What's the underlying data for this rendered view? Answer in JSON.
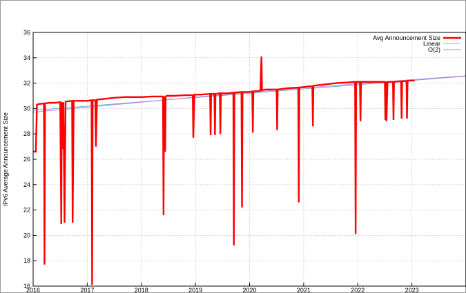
{
  "chart_data": {
    "type": "line",
    "title": "",
    "xlabel": "",
    "ylabel": "IPv6 Average Announcement Size",
    "xlim": [
      2016.0,
      2024.0
    ],
    "ylim": [
      16,
      36
    ],
    "x_ticks": [
      "2016",
      "2017",
      "2018",
      "2019",
      "2020",
      "2021",
      "2022",
      "2023"
    ],
    "y_ticks": [
      16,
      18,
      20,
      22,
      24,
      26,
      28,
      30,
      32,
      34,
      36
    ],
    "grid": true,
    "legend_position": "top-right",
    "series": [
      {
        "name": "Avg Announcement Size",
        "color": "#ff0000",
        "style": "line",
        "x": [
          2016.0,
          2016.05,
          2016.07,
          2016.1,
          2016.2,
          2016.21,
          2016.22,
          2016.3,
          2016.4,
          2016.5,
          2016.52,
          2016.53,
          2016.55,
          2016.56,
          2016.58,
          2016.6,
          2016.72,
          2016.73,
          2016.75,
          2016.8,
          2016.9,
          2017.0,
          2017.08,
          2017.09,
          2017.1,
          2017.15,
          2017.16,
          2017.18,
          2017.3,
          2017.5,
          2017.7,
          2017.9,
          2018.0,
          2018.2,
          2018.4,
          2018.41,
          2018.42,
          2018.44,
          2018.45,
          2018.47,
          2018.6,
          2018.8,
          2018.95,
          2018.96,
          2018.98,
          2019.1,
          2019.27,
          2019.28,
          2019.29,
          2019.35,
          2019.36,
          2019.37,
          2019.45,
          2019.46,
          2019.47,
          2019.6,
          2019.7,
          2019.71,
          2019.72,
          2019.85,
          2019.86,
          2019.87,
          2020.0,
          2020.05,
          2020.06,
          2020.07,
          2020.2,
          2020.21,
          2020.22,
          2020.23,
          2020.3,
          2020.5,
          2020.51,
          2020.52,
          2020.7,
          2020.9,
          2020.91,
          2020.92,
          2021.1,
          2021.16,
          2021.17,
          2021.18,
          2021.4,
          2021.6,
          2021.8,
          2021.95,
          2021.96,
          2021.97,
          2022.04,
          2022.05,
          2022.06,
          2022.2,
          2022.5,
          2022.51,
          2022.52,
          2022.53,
          2022.55,
          2022.6,
          2022.65,
          2022.66,
          2022.67,
          2022.8,
          2022.81,
          2022.82,
          2022.9,
          2022.91,
          2022.92,
          2023.05
        ],
        "y": [
          26.6,
          26.6,
          30.3,
          30.35,
          30.4,
          17.7,
          30.4,
          30.45,
          30.45,
          30.5,
          20.9,
          30.5,
          26.8,
          30.5,
          21.0,
          30.55,
          30.6,
          21.0,
          30.6,
          30.6,
          30.6,
          30.6,
          30.65,
          16.1,
          30.65,
          30.65,
          27.0,
          30.7,
          30.75,
          30.85,
          30.9,
          30.9,
          30.9,
          30.95,
          30.95,
          21.6,
          30.95,
          26.6,
          30.95,
          31.0,
          31.0,
          31.05,
          31.05,
          27.7,
          31.1,
          31.1,
          31.15,
          27.9,
          31.15,
          31.15,
          27.9,
          31.15,
          31.2,
          28.0,
          31.2,
          31.2,
          31.25,
          19.2,
          31.25,
          31.3,
          22.2,
          31.3,
          31.3,
          31.35,
          28.1,
          31.35,
          31.4,
          32.9,
          34.1,
          31.45,
          31.5,
          31.5,
          28.3,
          31.5,
          31.6,
          31.65,
          22.6,
          31.65,
          31.75,
          31.75,
          28.6,
          31.8,
          31.9,
          32.0,
          32.05,
          32.1,
          20.1,
          32.1,
          32.1,
          29.0,
          32.1,
          32.1,
          32.1,
          29.1,
          32.1,
          29.0,
          32.1,
          32.1,
          32.1,
          29.1,
          32.1,
          32.15,
          29.2,
          32.15,
          32.15,
          29.2,
          32.2,
          32.2
        ]
      },
      {
        "name": "Linear",
        "color": "#7fcfbf",
        "style": "line",
        "x": [
          2016.0,
          2024.0
        ],
        "y": [
          29.85,
          32.55
        ]
      },
      {
        "name": "O(2)",
        "color": "#c080e8",
        "style": "curve",
        "x": [
          2016.0,
          2017.0,
          2018.0,
          2019.0,
          2020.0,
          2021.0,
          2022.0,
          2023.0,
          2024.0
        ],
        "y": [
          29.7,
          30.1,
          30.5,
          30.9,
          31.27,
          31.62,
          31.95,
          32.27,
          32.58
        ]
      }
    ]
  }
}
